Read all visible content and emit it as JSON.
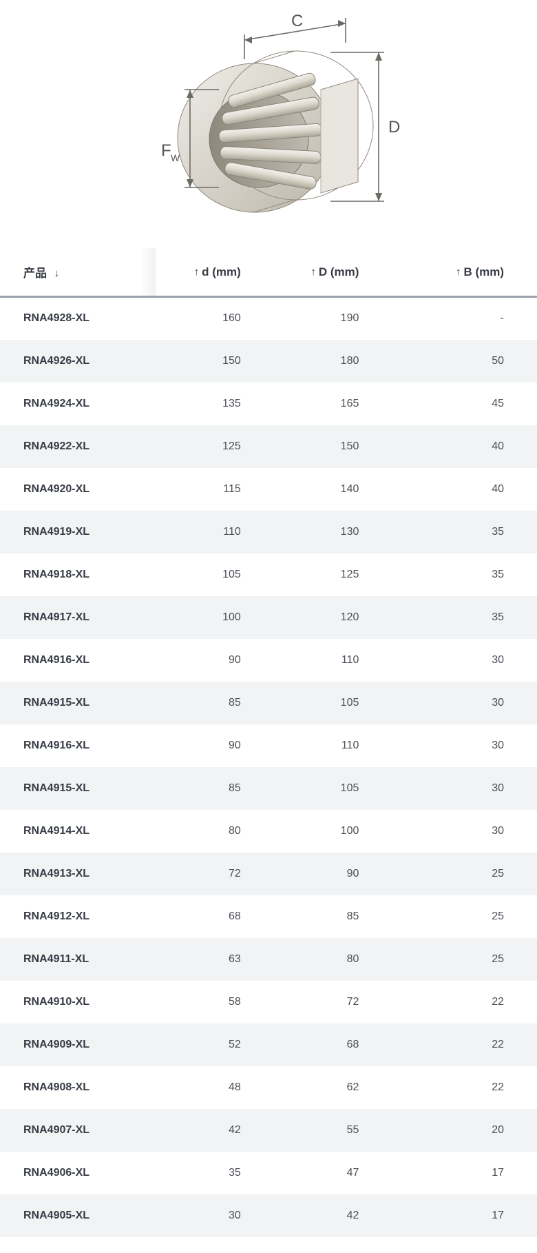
{
  "diagram": {
    "labels": {
      "C": "C",
      "D": "D",
      "Fw": "F",
      "Fw_sub": "W"
    },
    "colors": {
      "metal_light": "#e9e7e2",
      "metal_mid": "#cfcbc2",
      "metal_dark": "#b7b2a7",
      "metal_shadow": "#9b958a",
      "line": "#6d6a64",
      "label": "#555551"
    },
    "font_size_pt": 22
  },
  "table": {
    "columns": {
      "product": {
        "label": "产品",
        "sort_indicator": "↓"
      },
      "d": {
        "label": "d (mm)",
        "sort_indicator": "↑"
      },
      "D": {
        "label": "D (mm)",
        "sort_indicator": "↑"
      },
      "B": {
        "label": "B (mm)",
        "sort_indicator": "↑"
      }
    },
    "header_text_color": "#373c45",
    "header_border_color": "#9aa1ad",
    "row_bg_even": "#ffffff",
    "row_bg_odd": "#f1f3f4",
    "cell_text_color": "#4a4f57",
    "product_text_color": "#373c45",
    "rows": [
      {
        "product": "RNA4928-XL",
        "d": "160",
        "D": "190",
        "B": "-"
      },
      {
        "product": "RNA4926-XL",
        "d": "150",
        "D": "180",
        "B": "50"
      },
      {
        "product": "RNA4924-XL",
        "d": "135",
        "D": "165",
        "B": "45"
      },
      {
        "product": "RNA4922-XL",
        "d": "125",
        "D": "150",
        "B": "40"
      },
      {
        "product": "RNA4920-XL",
        "d": "115",
        "D": "140",
        "B": "40"
      },
      {
        "product": "RNA4919-XL",
        "d": "110",
        "D": "130",
        "B": "35"
      },
      {
        "product": "RNA4918-XL",
        "d": "105",
        "D": "125",
        "B": "35"
      },
      {
        "product": "RNA4917-XL",
        "d": "100",
        "D": "120",
        "B": "35"
      },
      {
        "product": "RNA4916-XL",
        "d": "90",
        "D": "110",
        "B": "30"
      },
      {
        "product": "RNA4915-XL",
        "d": "85",
        "D": "105",
        "B": "30"
      },
      {
        "product": "RNA4916-XL",
        "d": "90",
        "D": "110",
        "B": "30"
      },
      {
        "product": "RNA4915-XL",
        "d": "85",
        "D": "105",
        "B": "30"
      },
      {
        "product": "RNA4914-XL",
        "d": "80",
        "D": "100",
        "B": "30"
      },
      {
        "product": "RNA4913-XL",
        "d": "72",
        "D": "90",
        "B": "25"
      },
      {
        "product": "RNA4912-XL",
        "d": "68",
        "D": "85",
        "B": "25"
      },
      {
        "product": "RNA4911-XL",
        "d": "63",
        "D": "80",
        "B": "25"
      },
      {
        "product": "RNA4910-XL",
        "d": "58",
        "D": "72",
        "B": "22"
      },
      {
        "product": "RNA4909-XL",
        "d": "52",
        "D": "68",
        "B": "22"
      },
      {
        "product": "RNA4908-XL",
        "d": "48",
        "D": "62",
        "B": "22"
      },
      {
        "product": "RNA4907-XL",
        "d": "42",
        "D": "55",
        "B": "20"
      },
      {
        "product": "RNA4906-XL",
        "d": "35",
        "D": "47",
        "B": "17"
      },
      {
        "product": "RNA4905-XL",
        "d": "30",
        "D": "42",
        "B": "17"
      }
    ]
  }
}
